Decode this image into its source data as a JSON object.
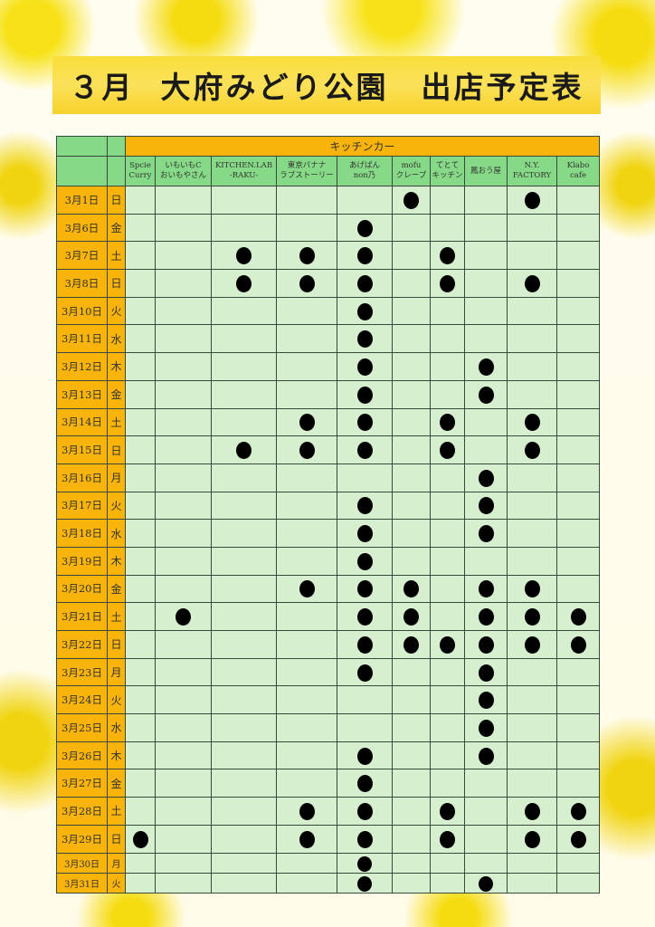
{
  "title": "３月  大府みどり公園　出店予定表",
  "group_header": "キッチンカー",
  "vendors": [
    {
      "l1": "Spcie",
      "l2": "Curry"
    },
    {
      "l1": "いもいもC",
      "l2": "おいもやさん"
    },
    {
      "l1": "KITCHEN.LAB",
      "l2": "-RAKU-"
    },
    {
      "l1": "東京バナナ",
      "l2": "ラブストーリー"
    },
    {
      "l1": "あげぱん",
      "l2": "non乃"
    },
    {
      "l1": "mofu",
      "l2": "クレープ"
    },
    {
      "l1": "てとて",
      "l2": "キッチン"
    },
    {
      "l1": "鳳おう屋",
      "l2": ""
    },
    {
      "l1": "N.Y.",
      "l2": "FACTORY"
    },
    {
      "l1": "Klabo",
      "l2": "cafe"
    }
  ],
  "mark_symbol": "●",
  "rows": [
    {
      "date": "3月1日",
      "dow": "日",
      "marks": [
        0,
        0,
        0,
        0,
        0,
        1,
        0,
        0,
        1,
        0
      ]
    },
    {
      "date": "3月6日",
      "dow": "金",
      "marks": [
        0,
        0,
        0,
        0,
        1,
        0,
        0,
        0,
        0,
        0
      ]
    },
    {
      "date": "3月7日",
      "dow": "土",
      "marks": [
        0,
        0,
        1,
        1,
        1,
        0,
        1,
        0,
        0,
        0
      ]
    },
    {
      "date": "3月8日",
      "dow": "日",
      "marks": [
        0,
        0,
        1,
        1,
        1,
        0,
        1,
        0,
        1,
        0
      ]
    },
    {
      "date": "3月10日",
      "dow": "火",
      "marks": [
        0,
        0,
        0,
        0,
        1,
        0,
        0,
        0,
        0,
        0
      ]
    },
    {
      "date": "3月11日",
      "dow": "水",
      "marks": [
        0,
        0,
        0,
        0,
        1,
        0,
        0,
        0,
        0,
        0
      ]
    },
    {
      "date": "3月12日",
      "dow": "木",
      "marks": [
        0,
        0,
        0,
        0,
        1,
        0,
        0,
        1,
        0,
        0
      ]
    },
    {
      "date": "3月13日",
      "dow": "金",
      "marks": [
        0,
        0,
        0,
        0,
        1,
        0,
        0,
        1,
        0,
        0
      ]
    },
    {
      "date": "3月14日",
      "dow": "土",
      "marks": [
        0,
        0,
        0,
        1,
        1,
        0,
        1,
        0,
        1,
        0
      ]
    },
    {
      "date": "3月15日",
      "dow": "日",
      "marks": [
        0,
        0,
        1,
        1,
        1,
        0,
        1,
        0,
        1,
        0
      ]
    },
    {
      "date": "3月16日",
      "dow": "月",
      "marks": [
        0,
        0,
        0,
        0,
        0,
        0,
        0,
        1,
        0,
        0
      ]
    },
    {
      "date": "3月17日",
      "dow": "火",
      "marks": [
        0,
        0,
        0,
        0,
        1,
        0,
        0,
        1,
        0,
        0
      ]
    },
    {
      "date": "3月18日",
      "dow": "水",
      "marks": [
        0,
        0,
        0,
        0,
        1,
        0,
        0,
        1,
        0,
        0
      ]
    },
    {
      "date": "3月19日",
      "dow": "木",
      "marks": [
        0,
        0,
        0,
        0,
        1,
        0,
        0,
        0,
        0,
        0
      ]
    },
    {
      "date": "3月20日",
      "dow": "金",
      "marks": [
        0,
        0,
        0,
        1,
        1,
        1,
        0,
        1,
        1,
        0
      ]
    },
    {
      "date": "3月21日",
      "dow": "土",
      "marks": [
        0,
        1,
        0,
        0,
        1,
        1,
        0,
        1,
        1,
        1
      ]
    },
    {
      "date": "3月22日",
      "dow": "日",
      "marks": [
        0,
        0,
        0,
        0,
        1,
        1,
        1,
        1,
        1,
        1
      ]
    },
    {
      "date": "3月23日",
      "dow": "月",
      "marks": [
        0,
        0,
        0,
        0,
        1,
        0,
        0,
        1,
        0,
        0
      ]
    },
    {
      "date": "3月24日",
      "dow": "火",
      "marks": [
        0,
        0,
        0,
        0,
        0,
        0,
        0,
        1,
        0,
        0
      ]
    },
    {
      "date": "3月25日",
      "dow": "水",
      "marks": [
        0,
        0,
        0,
        0,
        0,
        0,
        0,
        1,
        0,
        0
      ]
    },
    {
      "date": "3月26日",
      "dow": "木",
      "marks": [
        0,
        0,
        0,
        0,
        1,
        0,
        0,
        1,
        0,
        0
      ]
    },
    {
      "date": "3月27日",
      "dow": "金",
      "marks": [
        0,
        0,
        0,
        0,
        1,
        0,
        0,
        0,
        0,
        0
      ]
    },
    {
      "date": "3月28日",
      "dow": "土",
      "marks": [
        0,
        0,
        0,
        1,
        1,
        0,
        1,
        0,
        1,
        1
      ]
    },
    {
      "date": "3月29日",
      "dow": "日",
      "marks": [
        1,
        0,
        0,
        1,
        1,
        0,
        1,
        0,
        1,
        1
      ]
    },
    {
      "date": "3月30日",
      "dow": "月",
      "marks": [
        0,
        0,
        0,
        0,
        1,
        0,
        0,
        0,
        0,
        0
      ]
    },
    {
      "date": "3月31日",
      "dow": "火",
      "marks": [
        0,
        0,
        0,
        0,
        1,
        0,
        0,
        1,
        0,
        0
      ]
    }
  ],
  "colors": {
    "header_orange": "#f8b40a",
    "header_green": "#86d986",
    "cell_green": "#d6efcf",
    "banner_yellow": "#fbe15a"
  }
}
